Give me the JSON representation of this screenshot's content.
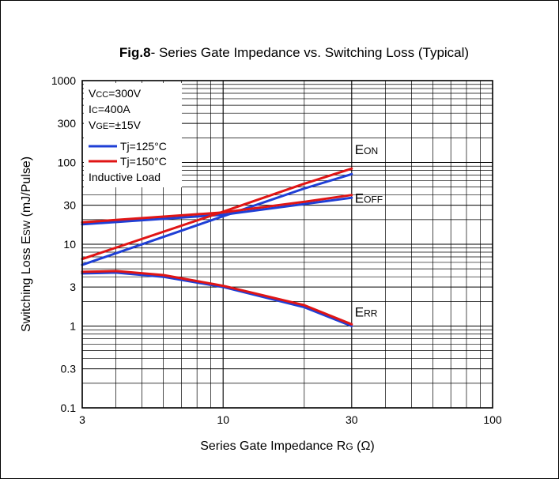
{
  "chart_data": {
    "type": "line",
    "title": {
      "bold": "Fig.8",
      "text": "- Series Gate Impedance vs. Switching Loss  (Typical)"
    },
    "xlabel": {
      "main": "Series Gate Impedance R",
      "sub": "G",
      "unit": "(Ω)"
    },
    "ylabel": {
      "main": "Switching Loss E",
      "sub": "SW",
      "unit": "(mJ/Pulse)"
    },
    "x_scale": "log",
    "y_scale": "log",
    "xlim": [
      3,
      100
    ],
    "ylim": [
      0.1,
      1000
    ],
    "x_ticks": [
      "3",
      "10",
      "30",
      "100"
    ],
    "y_ticks": [
      "0.1",
      "0.3",
      "1",
      "3",
      "10",
      "30",
      "100",
      "300",
      "1000"
    ],
    "grid": true,
    "conditions": [
      {
        "main": "V",
        "sub": "CC",
        "rest": "=300V"
      },
      {
        "main": "I",
        "sub": "C",
        "rest": "=400A"
      },
      {
        "main": "V",
        "sub": "GE",
        "rest": "=±15V"
      }
    ],
    "legend_note": "Inductive Load",
    "legend_position": "top-left",
    "colors": {
      "tj125": "#1f3fd6",
      "tj150": "#e01515"
    },
    "series": [
      {
        "name": "Tj=125°C",
        "color_key": "tj125",
        "curve": "ON",
        "x": [
          3,
          10,
          20,
          30
        ],
        "y": [
          5.6,
          22,
          48,
          72
        ]
      },
      {
        "name": "Tj=125°C",
        "color_key": "tj125",
        "curve": "OFF",
        "x": [
          3,
          10,
          20,
          30
        ],
        "y": [
          17.5,
          23,
          31,
          37
        ]
      },
      {
        "name": "Tj=125°C",
        "color_key": "tj125",
        "curve": "RR",
        "x": [
          3,
          4,
          6,
          10,
          20,
          30
        ],
        "y": [
          4.4,
          4.5,
          4.0,
          3.0,
          1.7,
          1.0
        ]
      },
      {
        "name": "Tj=150°C",
        "color_key": "tj150",
        "curve": "ON",
        "x": [
          3,
          10,
          20,
          30
        ],
        "y": [
          6.6,
          25,
          55,
          84
        ]
      },
      {
        "name": "Tj=150°C",
        "color_key": "tj150",
        "curve": "OFF",
        "x": [
          3,
          10,
          20,
          30
        ],
        "y": [
          18.5,
          24.5,
          33,
          40
        ]
      },
      {
        "name": "Tj=150°C",
        "color_key": "tj150",
        "curve": "RR",
        "x": [
          3,
          4,
          6,
          10,
          20,
          30
        ],
        "y": [
          4.6,
          4.7,
          4.2,
          3.1,
          1.8,
          1.05
        ]
      }
    ],
    "legend_series": [
      {
        "name": "Tj=125°C",
        "color_key": "tj125"
      },
      {
        "name": "Tj=150°C",
        "color_key": "tj150"
      }
    ],
    "curve_labels": [
      {
        "main": "E",
        "sub": "ON",
        "x": 30,
        "y": 85
      },
      {
        "main": "E",
        "sub": "OFF",
        "x": 30,
        "y": 40
      },
      {
        "main": "E",
        "sub": "RR",
        "x": 30,
        "y": 1.05
      }
    ]
  }
}
